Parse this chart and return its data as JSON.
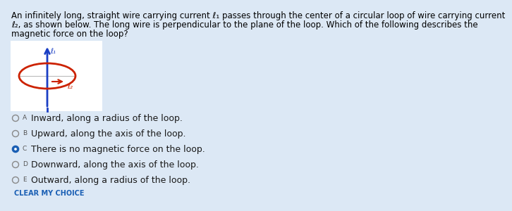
{
  "background_color": "#dce8f5",
  "white_box_color": "#ffffff",
  "title_lines": [
    "An infinitely long, straight wire carrying current ℓ₁ passes through the center of a circular loop of wire carrying current",
    "ℓ₂, as shown below. The long wire is perpendicular to the plane of the loop. Which of the following describes the",
    "magnetic force on the loop?"
  ],
  "title_fontsize": 8.5,
  "options": [
    {
      "label": "A",
      "text": "Inward, along a radius of the loop.",
      "selected": false
    },
    {
      "label": "B",
      "text": "Upward, along the axis of the loop.",
      "selected": false
    },
    {
      "label": "C",
      "text": "There is no magnetic force on the loop.",
      "selected": true
    },
    {
      "label": "D",
      "text": "Downward, along the axis of the loop.",
      "selected": false
    },
    {
      "label": "E",
      "text": "Outward, along a radius of the loop.",
      "selected": false
    }
  ],
  "clear_text": "CLEAR MY CHOICE",
  "clear_fontsize": 7.0,
  "option_fontsize": 9.0,
  "label_fontsize": 6.5,
  "diagram": {
    "arrow_color": "#1a3ec4",
    "ellipse_color": "#cc2200",
    "i1_label": "ℓ₁",
    "i2_label": "ℓ₂"
  }
}
